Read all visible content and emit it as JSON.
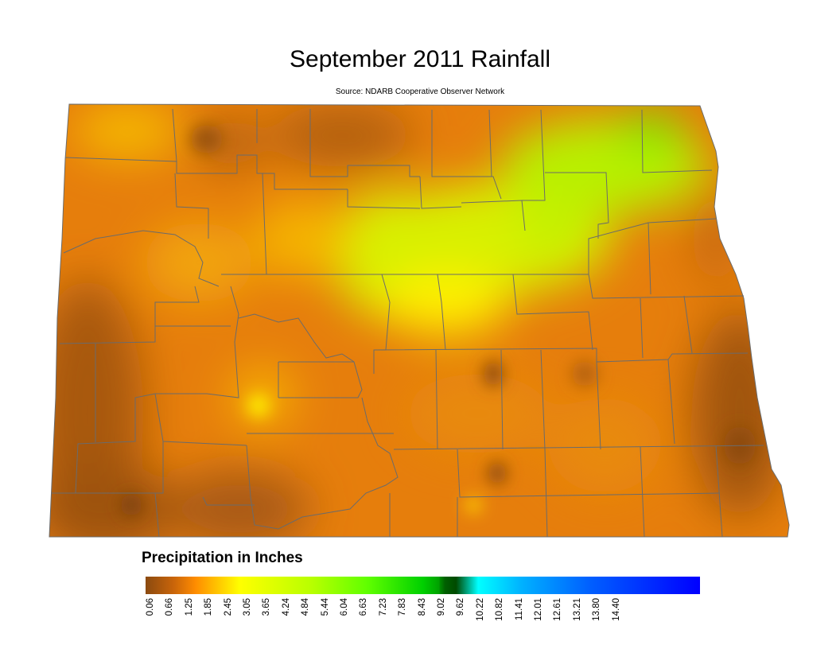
{
  "title": "September 2011 Rainfall",
  "subtitle": "Source: NDARB Cooperative Observer Network",
  "legend": {
    "title": "Precipitation in Inches",
    "ticks": [
      "0.06",
      "0.66",
      "1.25",
      "1.85",
      "2.45",
      "3.05",
      "3.65",
      "4.24",
      "4.84",
      "5.44",
      "6.04",
      "6.63",
      "7.23",
      "7.83",
      "8.43",
      "9.02",
      "9.62",
      "10.22",
      "10.82",
      "11.41",
      "12.01",
      "12.61",
      "13.21",
      "13.80",
      "14.40"
    ],
    "colors": [
      "#8b4a10",
      "#c8640a",
      "#ff8c00",
      "#ffc000",
      "#ffff00",
      "#d8ff00",
      "#a0ff00",
      "#60ff00",
      "#00e000",
      "#00b000",
      "#008000",
      "#006400",
      "#00ffff",
      "#00b0ff",
      "#0060ff",
      "#0000ff"
    ]
  },
  "map_colors": {
    "dark_brown": "#a65a14",
    "orange": "#e67e0c",
    "light_orange": "#f59a12",
    "yellow": "#ffe600",
    "yellow_green": "#c8f000",
    "green": "#70e800",
    "county_line": "#6b6b6b"
  }
}
